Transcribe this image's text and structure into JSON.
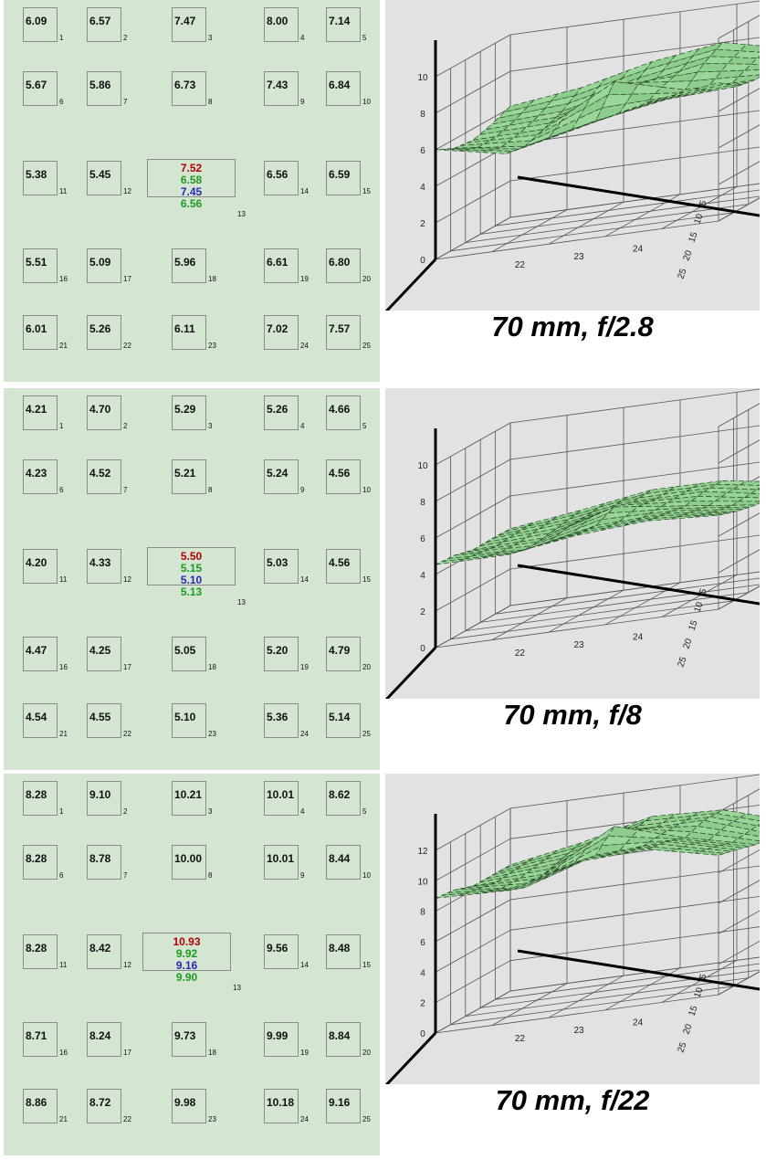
{
  "chart_data": [
    {
      "type": "heatmap",
      "title": "70 mm, f/2.8",
      "cells": [
        {
          "id": 1,
          "value": "6.09"
        },
        {
          "id": 2,
          "value": "6.57"
        },
        {
          "id": 3,
          "value": "7.47"
        },
        {
          "id": 4,
          "value": "8.00"
        },
        {
          "id": 5,
          "value": "7.14"
        },
        {
          "id": 6,
          "value": "5.67"
        },
        {
          "id": 7,
          "value": "5.86"
        },
        {
          "id": 8,
          "value": "6.73"
        },
        {
          "id": 9,
          "value": "7.43"
        },
        {
          "id": 10,
          "value": "6.84"
        },
        {
          "id": 11,
          "value": "5.38"
        },
        {
          "id": 12,
          "value": "5.45"
        },
        {
          "id": 13,
          "values": [
            "7.52",
            "6.58",
            "7.45",
            "6.56"
          ]
        },
        {
          "id": 14,
          "value": "6.56"
        },
        {
          "id": 15,
          "value": "6.59"
        },
        {
          "id": 16,
          "value": "5.51"
        },
        {
          "id": 17,
          "value": "5.09"
        },
        {
          "id": 18,
          "value": "5.96"
        },
        {
          "id": 19,
          "value": "6.61"
        },
        {
          "id": 20,
          "value": "6.80"
        },
        {
          "id": 21,
          "value": "6.01"
        },
        {
          "id": 22,
          "value": "5.26"
        },
        {
          "id": 23,
          "value": "6.11"
        },
        {
          "id": 24,
          "value": "7.02"
        },
        {
          "id": 25,
          "value": "7.57"
        }
      ],
      "center_colors": [
        "#b00000",
        "#1e9a1e",
        "#2828b4",
        "#1e9a1e"
      ],
      "surface": {
        "z_ticks": [
          "0",
          "2",
          "4",
          "6",
          "8",
          "10"
        ],
        "z_range": [
          0,
          10
        ],
        "y_ticks": [
          "5",
          "10",
          "15",
          "20",
          "25"
        ],
        "x_ticks": [
          "22",
          "23",
          "24"
        ]
      }
    },
    {
      "type": "heatmap",
      "title": "70 mm, f/8",
      "cells": [
        {
          "id": 1,
          "value": "4.21"
        },
        {
          "id": 2,
          "value": "4.70"
        },
        {
          "id": 3,
          "value": "5.29"
        },
        {
          "id": 4,
          "value": "5.26"
        },
        {
          "id": 5,
          "value": "4.66"
        },
        {
          "id": 6,
          "value": "4.23"
        },
        {
          "id": 7,
          "value": "4.52"
        },
        {
          "id": 8,
          "value": "5.21"
        },
        {
          "id": 9,
          "value": "5.24"
        },
        {
          "id": 10,
          "value": "4.56"
        },
        {
          "id": 11,
          "value": "4.20"
        },
        {
          "id": 12,
          "value": "4.33"
        },
        {
          "id": 13,
          "values": [
            "5.50",
            "5.15",
            "5.10",
            "5.13"
          ]
        },
        {
          "id": 14,
          "value": "5.03"
        },
        {
          "id": 15,
          "value": "4.56"
        },
        {
          "id": 16,
          "value": "4.47"
        },
        {
          "id": 17,
          "value": "4.25"
        },
        {
          "id": 18,
          "value": "5.05"
        },
        {
          "id": 19,
          "value": "5.20"
        },
        {
          "id": 20,
          "value": "4.79"
        },
        {
          "id": 21,
          "value": "4.54"
        },
        {
          "id": 22,
          "value": "4.55"
        },
        {
          "id": 23,
          "value": "5.10"
        },
        {
          "id": 24,
          "value": "5.36"
        },
        {
          "id": 25,
          "value": "5.14"
        }
      ],
      "center_colors": [
        "#b00000",
        "#1e9a1e",
        "#2828b4",
        "#1e9a1e"
      ],
      "surface": {
        "z_ticks": [
          "0",
          "2",
          "4",
          "6",
          "8",
          "10"
        ],
        "z_range": [
          0,
          10
        ],
        "y_ticks": [
          "5",
          "10",
          "15",
          "20",
          "25"
        ],
        "x_ticks": [
          "22",
          "23",
          "24"
        ]
      }
    },
    {
      "type": "heatmap",
      "title": "70 mm, f/22",
      "cells": [
        {
          "id": 1,
          "value": "8.28"
        },
        {
          "id": 2,
          "value": "9.10"
        },
        {
          "id": 3,
          "value": "10.21"
        },
        {
          "id": 4,
          "value": "10.01"
        },
        {
          "id": 5,
          "value": "8.62"
        },
        {
          "id": 6,
          "value": "8.28"
        },
        {
          "id": 7,
          "value": "8.78"
        },
        {
          "id": 8,
          "value": "10.00"
        },
        {
          "id": 9,
          "value": "10.01"
        },
        {
          "id": 10,
          "value": "8.44"
        },
        {
          "id": 11,
          "value": "8.28"
        },
        {
          "id": 12,
          "value": "8.42"
        },
        {
          "id": 13,
          "values": [
            "10.93",
            "9.92",
            "9.16",
            "9.90"
          ]
        },
        {
          "id": 14,
          "value": "9.56"
        },
        {
          "id": 15,
          "value": "8.48"
        },
        {
          "id": 16,
          "value": "8.71"
        },
        {
          "id": 17,
          "value": "8.24"
        },
        {
          "id": 18,
          "value": "9.73"
        },
        {
          "id": 19,
          "value": "9.99"
        },
        {
          "id": 20,
          "value": "8.84"
        },
        {
          "id": 21,
          "value": "8.86"
        },
        {
          "id": 22,
          "value": "8.72"
        },
        {
          "id": 23,
          "value": "9.98"
        },
        {
          "id": 24,
          "value": "10.18"
        },
        {
          "id": 25,
          "value": "9.16"
        }
      ],
      "center_colors": [
        "#b00000",
        "#1e9a1e",
        "#2828b4",
        "#1e9a1e"
      ],
      "surface": {
        "z_ticks": [
          "0",
          "2",
          "4",
          "6",
          "8",
          "10",
          "12"
        ],
        "z_range": [
          0,
          12
        ],
        "y_ticks": [
          "5",
          "10",
          "15",
          "20",
          "25"
        ],
        "x_ticks": [
          "22",
          "23",
          "24"
        ]
      }
    }
  ],
  "colors": {
    "grid_background": "#d4e5d2",
    "plot_background": "#e2e2e2",
    "surface_fill": "#8fcf8f",
    "surface_edge": "#2a4a2a"
  }
}
